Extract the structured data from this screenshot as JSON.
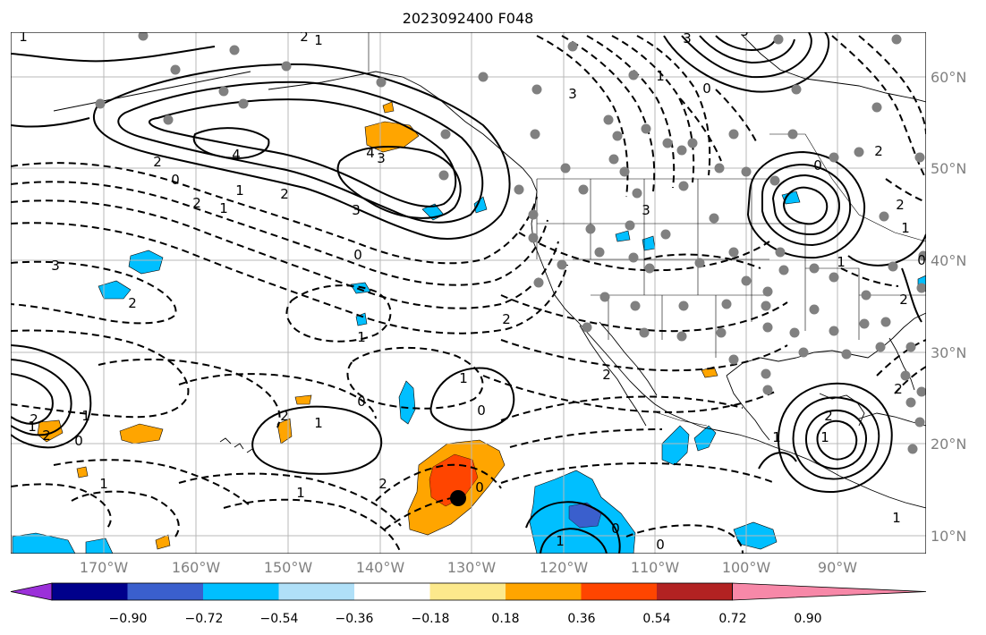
{
  "title": "2023092400 F048",
  "lon_labels": [
    "170°W",
    "160°W",
    "150°W",
    "140°W",
    "130°W",
    "120°W",
    "110°W",
    "100°W",
    "90°W"
  ],
  "lat_labels": [
    "60°N",
    "50°N",
    "40°N",
    "30°N",
    "20°N",
    "10°N"
  ],
  "colorbar": {
    "ticks": [
      "−0.90",
      "−0.72",
      "−0.54",
      "−0.36",
      "−0.18",
      "0.18",
      "0.36",
      "0.54",
      "0.72",
      "0.90"
    ],
    "colors": [
      "#9b30d9",
      "#00008b",
      "#3a5fcd",
      "#00bfff",
      "#b0e0f8",
      "#ffffff",
      "#fce98c",
      "#ffa500",
      "#ff4500",
      "#b22222",
      "#f788a8"
    ]
  },
  "contour_labels": [
    "1",
    "2",
    "1",
    "4",
    "2",
    "0",
    "1",
    "2",
    "1",
    "2",
    "3",
    "4",
    "3",
    "0",
    "3",
    "3",
    "2",
    "1",
    "2",
    "1",
    "0",
    "3",
    "0",
    "2",
    "1",
    "1",
    "1",
    "0",
    "2",
    "2",
    "0",
    "1",
    "1",
    "2",
    "1",
    "0",
    "2",
    "0",
    "1",
    "1",
    "1",
    "2",
    "1",
    "2",
    "1",
    "0",
    "0",
    "2",
    "3",
    "2",
    "1",
    "2",
    "0",
    "3"
  ]
}
